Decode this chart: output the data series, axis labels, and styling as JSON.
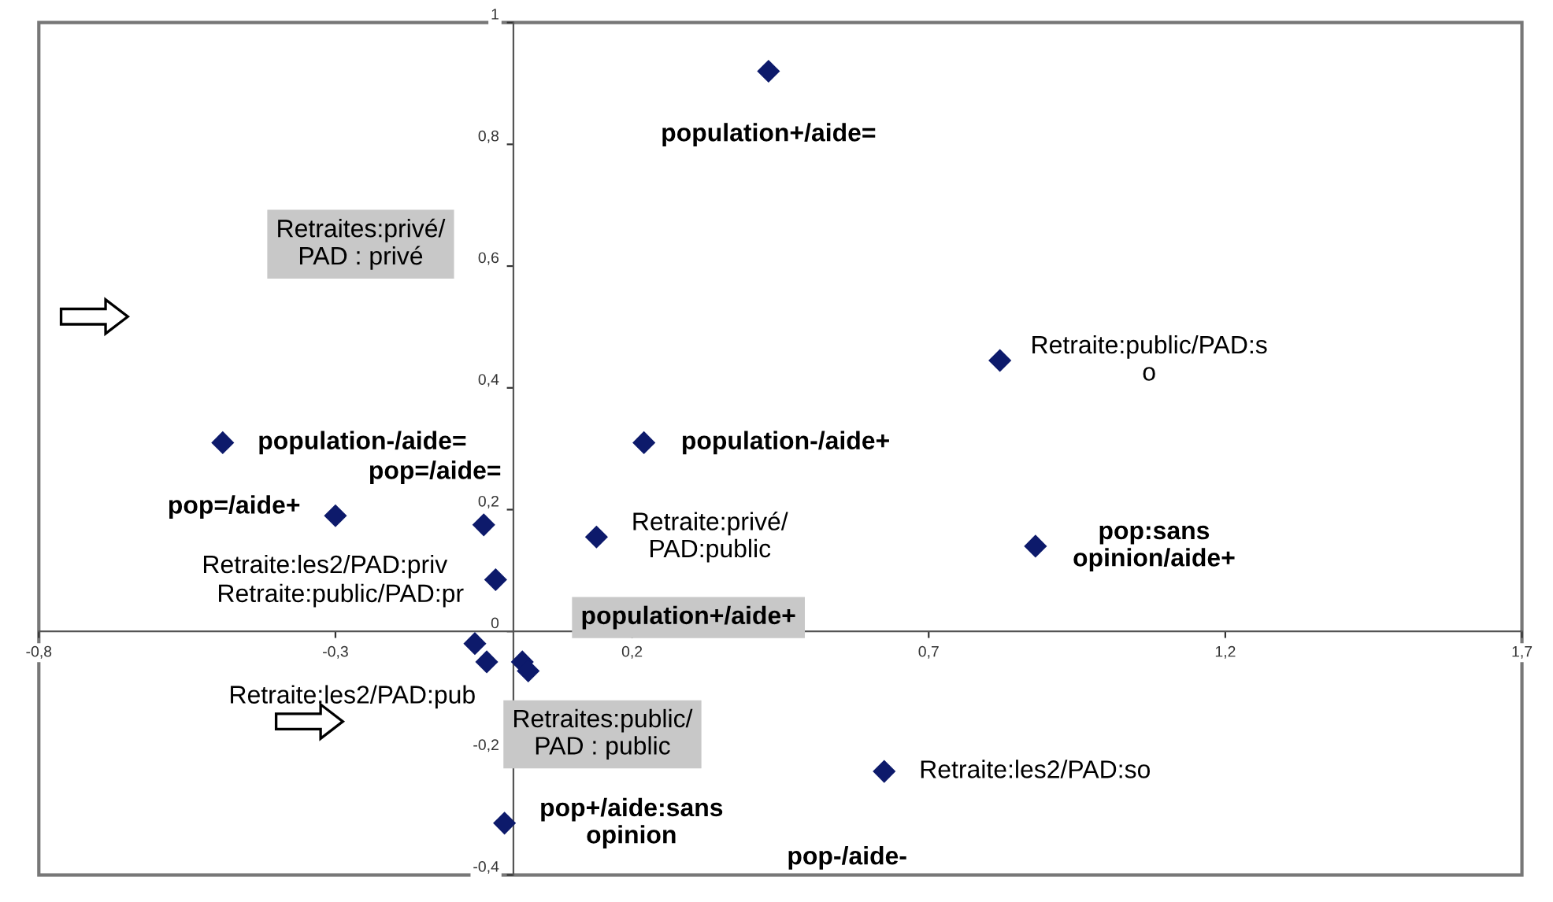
{
  "chart_data": {
    "type": "scatter",
    "marker": "diamond",
    "grid": false,
    "x": [
      0.43,
      -0.49,
      0.22,
      0.82,
      -0.3,
      -0.05,
      0.14,
      0.88,
      -0.03,
      -0.065,
      -0.045,
      0.015,
      0.025,
      -0.015,
      0.625
    ],
    "series": [
      {
        "color": "#0d1a6b",
        "values": [
          0.92,
          0.31,
          0.31,
          0.445,
          0.19,
          0.175,
          0.155,
          0.14,
          0.085,
          -0.02,
          -0.05,
          -0.05,
          -0.065,
          -0.315,
          -0.23
        ]
      }
    ],
    "xlim": [
      -0.8,
      1.7
    ],
    "ylim": [
      -0.4,
      1
    ],
    "xticks": [
      {
        "value": -0.8,
        "label": "-0,8"
      },
      {
        "value": -0.3,
        "label": "-0,3"
      },
      {
        "value": 0.2,
        "label": "0,2"
      },
      {
        "value": 0.7,
        "label": "0,7"
      },
      {
        "value": 1.2,
        "label": "1,2"
      },
      {
        "value": 1.7,
        "label": "1,7"
      }
    ],
    "yticks": [
      {
        "value": -0.4,
        "label": "-0,4"
      },
      {
        "value": -0.2,
        "label": "-0,2"
      },
      0,
      {
        "value": 0.2,
        "label": "0,2"
      },
      {
        "value": 0.4,
        "label": "0,4"
      },
      {
        "value": 0.6,
        "label": "0,6"
      },
      {
        "value": 0.8,
        "label": "0,8"
      },
      1
    ],
    "annotations": [
      {
        "text": "population+/aide=",
        "x": 0.43,
        "y": 0.92
      },
      {
        "text": "population-/aide=",
        "x": -0.49,
        "y": 0.31
      },
      {
        "text": "population-/aide+",
        "x": 0.22,
        "y": 0.31
      },
      {
        "text": "Retraite:public/PAD:s\no",
        "x": 0.82,
        "y": 0.445
      },
      {
        "text": "pop=/aide+",
        "x": -0.3,
        "y": 0.19
      },
      {
        "text": "pop=/aide=",
        "x": -0.05,
        "y": 0.175
      },
      {
        "text": "Retraite:privé/\nPAD:public",
        "x": 0.14,
        "y": 0.155
      },
      {
        "text": "pop:sans\nopinion/aide+",
        "x": 0.88,
        "y": 0.14
      },
      {
        "text": "Retraite:les2/PAD:priv",
        "x": -0.03,
        "y": 0.085
      },
      {
        "text": "Retraite:public/PAD:pr",
        "x": -0.065,
        "y": -0.02
      },
      {
        "text": "Retraite:les2/PAD:pub",
        "x": -0.045,
        "y": -0.05
      },
      "population+/aide+",
      {
        "text": "pop+/aide:sans\nopinion",
        "x": -0.015,
        "y": -0.315
      },
      {
        "text": "Retraite:les2/PAD:so",
        "x": 0.625,
        "y": -0.23
      },
      "pop-/aide-",
      "Retraites:privé/\nPAD : privé",
      "Retraites:public/\nPAD : public"
    ]
  }
}
